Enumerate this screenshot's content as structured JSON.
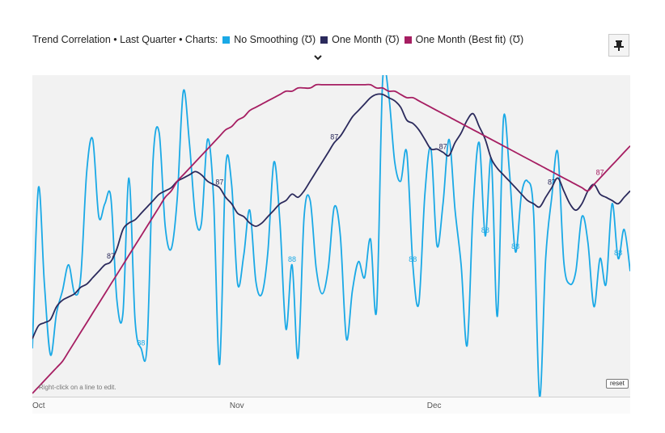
{
  "header": {
    "prefix": "Trend Correlation • Last Quarter • Charts:",
    "series_suffix": "(Ʊ)",
    "expand_icon": "chevron-down-icon",
    "pin_icon": "pin-icon"
  },
  "hint": "Right-click on a line to edit.",
  "reset_label": "reset",
  "chart_data": {
    "type": "line",
    "x_ticks": [
      "Oct",
      "Nov",
      "Dec"
    ],
    "y_range": [
      80,
      90
    ],
    "grid": false,
    "legend_position": "top",
    "series": [
      {
        "name": "No Smoothing",
        "color": "#1aa9e6",
        "values": [
          81.5,
          86.5,
          83.5,
          81.3,
          82.6,
          83.3,
          84.1,
          83.2,
          83.7,
          87.0,
          88.0,
          85.6,
          86.0,
          86.2,
          83.0,
          82.6,
          86.8,
          82.4,
          81.5,
          81.6,
          87.4,
          88.2,
          85.3,
          84.6,
          86.2,
          89.5,
          87.9,
          85.6,
          85.4,
          88.0,
          86.2,
          81.0,
          87.1,
          86.6,
          83.5,
          84.4,
          85.8,
          83.6,
          83.2,
          84.5,
          87.3,
          85.4,
          82.1,
          84.1,
          81.2,
          85.6,
          86.1,
          84.0,
          83.2,
          84.0,
          85.9,
          85.0,
          81.8,
          83.3,
          84.2,
          83.7,
          84.9,
          82.7,
          89.8,
          89.4,
          87.3,
          86.7,
          87.6,
          84.1,
          82.9,
          86.3,
          87.7,
          84.7,
          86.0,
          88.0,
          85.8,
          84.1,
          81.6,
          85.9,
          87.9,
          85.0,
          87.4,
          82.5,
          88.6,
          87.0,
          84.5,
          86.3,
          86.7,
          85.7,
          80.0,
          84.3,
          86.2,
          87.6,
          84.2,
          83.5,
          83.9,
          85.6,
          84.8,
          82.8,
          84.3,
          83.5,
          86.0,
          84.3,
          85.2,
          83.9
        ],
        "labels": [
          {
            "index": 18,
            "text": "88"
          },
          {
            "index": 43,
            "text": "88"
          },
          {
            "index": 63,
            "text": "88"
          },
          {
            "index": 75,
            "text": "88"
          },
          {
            "index": 80,
            "text": "88"
          },
          {
            "index": 97,
            "text": "88"
          }
        ]
      },
      {
        "name": "One Month",
        "color": "#2b2a5c",
        "values": [
          81.8,
          82.2,
          82.3,
          82.4,
          82.8,
          83.0,
          83.1,
          83.2,
          83.4,
          83.5,
          83.7,
          83.9,
          84.1,
          84.2,
          84.6,
          85.2,
          85.4,
          85.5,
          85.7,
          85.9,
          86.1,
          86.3,
          86.4,
          86.5,
          86.7,
          86.8,
          86.9,
          87.0,
          86.9,
          86.7,
          86.6,
          86.5,
          86.2,
          86.0,
          85.7,
          85.6,
          85.4,
          85.3,
          85.4,
          85.6,
          85.8,
          86.0,
          86.1,
          86.3,
          86.2,
          86.4,
          86.7,
          87.0,
          87.3,
          87.6,
          87.9,
          88.1,
          88.4,
          88.7,
          88.9,
          89.1,
          89.3,
          89.4,
          89.4,
          89.3,
          89.2,
          89.0,
          88.6,
          88.5,
          88.3,
          88.0,
          87.7,
          87.7,
          87.6,
          87.5,
          87.9,
          88.2,
          88.6,
          88.8,
          88.4,
          88.0,
          87.4,
          87.1,
          86.9,
          86.7,
          86.5,
          86.3,
          86.1,
          86.0,
          85.9,
          86.2,
          86.5,
          86.8,
          86.4,
          86.0,
          85.8,
          86.0,
          86.4,
          86.6,
          86.3,
          86.2,
          86.1,
          86.0,
          86.2,
          86.4
        ],
        "labels": [
          {
            "index": 13,
            "text": "87"
          },
          {
            "index": 31,
            "text": "87"
          },
          {
            "index": 50,
            "text": "87"
          },
          {
            "index": 68,
            "text": "87"
          },
          {
            "index": 86,
            "text": "87"
          }
        ]
      },
      {
        "name": "One Month (Best fit)",
        "color": "#a61e62",
        "values": [
          80.1,
          80.3,
          80.5,
          80.7,
          80.9,
          81.1,
          81.4,
          81.7,
          82.0,
          82.3,
          82.6,
          82.9,
          83.2,
          83.5,
          83.8,
          84.1,
          84.4,
          84.7,
          85.0,
          85.3,
          85.6,
          85.9,
          86.2,
          86.4,
          86.7,
          86.9,
          87.1,
          87.3,
          87.5,
          87.7,
          87.9,
          88.1,
          88.3,
          88.4,
          88.6,
          88.7,
          88.9,
          89.0,
          89.1,
          89.2,
          89.3,
          89.4,
          89.5,
          89.5,
          89.6,
          89.6,
          89.6,
          89.7,
          89.7,
          89.7,
          89.7,
          89.7,
          89.7,
          89.7,
          89.7,
          89.7,
          89.7,
          89.6,
          89.6,
          89.5,
          89.5,
          89.4,
          89.3,
          89.3,
          89.2,
          89.1,
          89.0,
          88.9,
          88.8,
          88.7,
          88.6,
          88.5,
          88.4,
          88.3,
          88.2,
          88.1,
          88.0,
          87.9,
          87.8,
          87.7,
          87.6,
          87.5,
          87.4,
          87.3,
          87.2,
          87.1,
          87.0,
          86.9,
          86.8,
          86.7,
          86.6,
          86.5,
          86.4,
          86.6,
          86.8,
          87.0,
          87.2,
          87.4,
          87.6,
          87.8
        ],
        "labels": [
          {
            "index": 94,
            "text": "87"
          }
        ]
      }
    ]
  }
}
